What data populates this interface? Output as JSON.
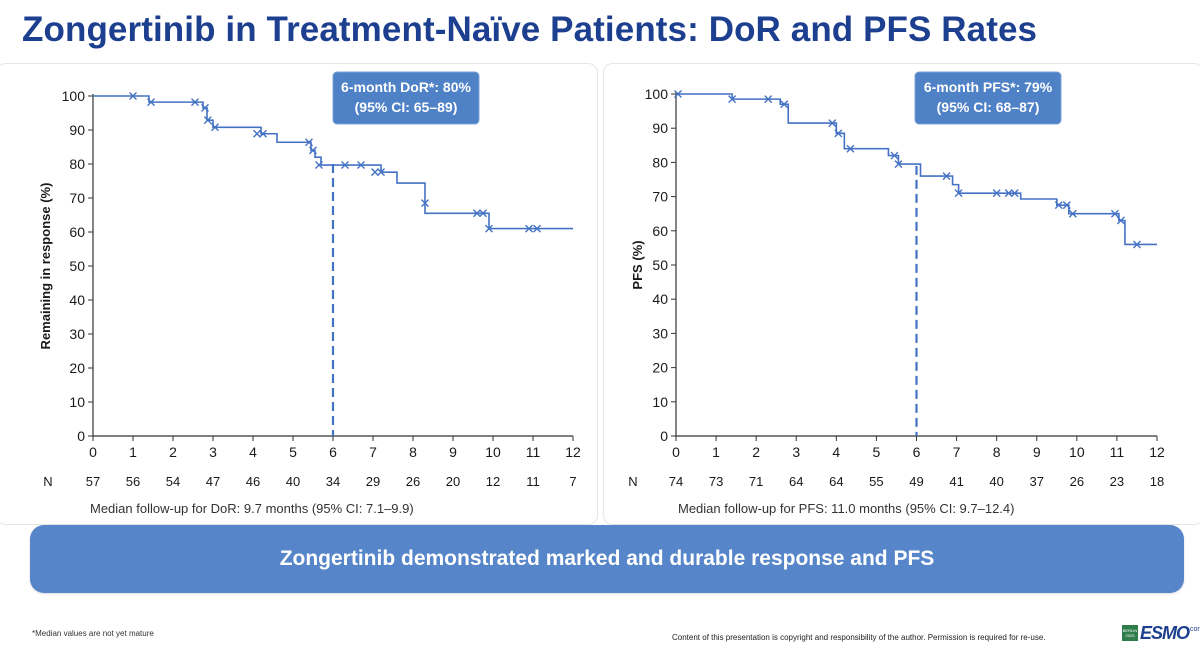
{
  "slide": {
    "title": "Zongertinib in Treatment-Naïve Patients: DoR and PFS Rates",
    "banner": "Zongertinib demonstrated marked and durable response and PFS",
    "footnote": "*Median values are not yet mature",
    "copyright": "Content of this presentation is copyright and responsibility of the author. Permission is required for re-use.",
    "logo": {
      "text": "ESMO",
      "sub": "congress",
      "badge": "BERLIN 2025"
    }
  },
  "colors": {
    "title": "#1d3f8f",
    "curve": "#4472c4",
    "callout": "#4f81c7",
    "banner": "#5686c9"
  },
  "chart_data": [
    {
      "type": "line",
      "subtype": "kaplan-meier",
      "ylabel": "Remaining in response (%)",
      "xlabel": "",
      "xlim": [
        0,
        12
      ],
      "ylim": [
        0,
        100
      ],
      "xticks": [
        0,
        1,
        2,
        3,
        4,
        5,
        6,
        7,
        8,
        9,
        10,
        11,
        12
      ],
      "yticks": [
        0,
        10,
        20,
        30,
        40,
        50,
        60,
        70,
        80,
        90,
        100
      ],
      "callout": {
        "line1": "6-month DoR*: 80%",
        "line2": "(95% CI: 65–89)"
      },
      "reference_x": 6,
      "reference_y": 80,
      "risk_label": "N",
      "at_risk": [
        57,
        56,
        54,
        47,
        46,
        40,
        34,
        29,
        26,
        20,
        12,
        11,
        7
      ],
      "median_note": "Median follow-up for DoR: 9.7 months (95% CI: 7.1–9.9)",
      "steps": [
        [
          0,
          100
        ],
        [
          1.4,
          98.2
        ],
        [
          2.75,
          96.5
        ],
        [
          2.85,
          92.9
        ],
        [
          3.0,
          90.8
        ],
        [
          4.2,
          88.9
        ],
        [
          4.6,
          86.4
        ],
        [
          5.45,
          84.0
        ],
        [
          5.55,
          82.0
        ],
        [
          5.7,
          79.7
        ],
        [
          7.2,
          77.6
        ],
        [
          7.6,
          74.4
        ],
        [
          8.3,
          65.5
        ],
        [
          9.9,
          61.0
        ],
        [
          12,
          61.0
        ]
      ],
      "censors": [
        [
          1.0,
          100
        ],
        [
          1.45,
          98.2
        ],
        [
          2.55,
          98.2
        ],
        [
          2.8,
          96.5
        ],
        [
          2.87,
          92.9
        ],
        [
          3.05,
          90.8
        ],
        [
          4.1,
          88.9
        ],
        [
          4.25,
          88.9
        ],
        [
          5.4,
          86.4
        ],
        [
          5.5,
          84.0
        ],
        [
          5.65,
          79.7
        ],
        [
          6.3,
          79.7
        ],
        [
          6.7,
          79.7
        ],
        [
          7.05,
          77.6
        ],
        [
          7.2,
          77.6
        ],
        [
          8.3,
          68.5
        ],
        [
          9.6,
          65.5
        ],
        [
          9.75,
          65.5
        ],
        [
          9.9,
          61.0
        ],
        [
          10.9,
          61.0
        ],
        [
          11.1,
          61.0
        ]
      ]
    },
    {
      "type": "line",
      "subtype": "kaplan-meier",
      "ylabel": "PFS (%)",
      "xlabel": "",
      "xlim": [
        0,
        12
      ],
      "ylim": [
        0,
        100
      ],
      "xticks": [
        0,
        1,
        2,
        3,
        4,
        5,
        6,
        7,
        8,
        9,
        10,
        11,
        12
      ],
      "yticks": [
        0,
        10,
        20,
        30,
        40,
        50,
        60,
        70,
        80,
        90,
        100
      ],
      "callout": {
        "line1": "6-month PFS*: 79%",
        "line2": "(95% CI: 68–87)"
      },
      "reference_x": 6,
      "reference_y": 79,
      "risk_label": "N",
      "at_risk": [
        74,
        73,
        71,
        64,
        64,
        55,
        49,
        41,
        40,
        37,
        26,
        23,
        18
      ],
      "median_note": "Median follow-up for PFS: 11.0 months (95% CI: 9.7–12.4)",
      "steps": [
        [
          0,
          100
        ],
        [
          1.4,
          98.5
        ],
        [
          2.6,
          97.0
        ],
        [
          2.8,
          91.5
        ],
        [
          4.0,
          88.5
        ],
        [
          4.2,
          84.0
        ],
        [
          5.3,
          82.0
        ],
        [
          5.55,
          79.5
        ],
        [
          6.1,
          76.0
        ],
        [
          6.9,
          73.5
        ],
        [
          7.05,
          71.0
        ],
        [
          8.6,
          69.3
        ],
        [
          9.5,
          67.5
        ],
        [
          9.8,
          65.0
        ],
        [
          11.05,
          63.0
        ],
        [
          11.2,
          56.0
        ],
        [
          12,
          56.0
        ]
      ],
      "censors": [
        [
          0.05,
          100
        ],
        [
          1.4,
          98.5
        ],
        [
          2.3,
          98.5
        ],
        [
          2.7,
          97.0
        ],
        [
          3.9,
          91.5
        ],
        [
          4.05,
          88.5
        ],
        [
          4.35,
          84.0
        ],
        [
          5.45,
          82.0
        ],
        [
          5.55,
          79.5
        ],
        [
          6.75,
          76.0
        ],
        [
          7.05,
          71.0
        ],
        [
          8.0,
          71.0
        ],
        [
          8.3,
          71.0
        ],
        [
          8.45,
          71.0
        ],
        [
          9.55,
          67.5
        ],
        [
          9.75,
          67.5
        ],
        [
          9.9,
          65.0
        ],
        [
          10.95,
          65.0
        ],
        [
          11.1,
          63.0
        ],
        [
          11.5,
          56.0
        ]
      ]
    }
  ]
}
